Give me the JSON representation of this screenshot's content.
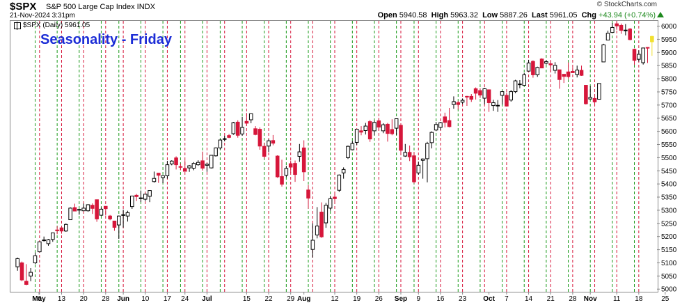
{
  "header": {
    "symbol": "$SPX",
    "description": "S&P 500 Large Cap Index  INDX",
    "datetime": "21-Nov-2024 3:31pm",
    "brand": "© StockCharts.com",
    "open_label": "Open",
    "open_value": "5940.58",
    "high_label": "High",
    "high_value": "5963.32",
    "low_label": "Low",
    "low_value": "5887.26",
    "last_label": "Last",
    "last_value": "5961.05",
    "chg_label": "Chg",
    "chg_value": "+43.94 (+0.74%)"
  },
  "legend": {
    "text": "$SPX (Daily) 5961.05"
  },
  "colors": {
    "up": "#000000",
    "down": "#d6163a",
    "current": "#f2e02e",
    "friday_line": "#1a9a1a",
    "monday_line": "#d6163a",
    "title": "#1c2dd6"
  },
  "chart_data": {
    "type": "candlestick",
    "title": "Seasonality - Friday",
    "ylim": [
      4990,
      6020
    ],
    "yticks": [
      5000,
      5050,
      5100,
      5150,
      5200,
      5250,
      5300,
      5350,
      5400,
      5450,
      5500,
      5550,
      5600,
      5650,
      5700,
      5750,
      5800,
      5850,
      5900,
      5950,
      6000
    ],
    "xticks": [
      {
        "label": "May",
        "bold": true
      },
      {
        "label": "6"
      },
      {
        "label": "13"
      },
      {
        "label": "20"
      },
      {
        "label": "28"
      },
      {
        "label": "Jun",
        "bold": true
      },
      {
        "label": "10"
      },
      {
        "label": "17"
      },
      {
        "label": "24"
      },
      {
        "label": "Jul",
        "bold": true
      },
      {
        "label": "15"
      },
      {
        "label": "22"
      },
      {
        "label": "29"
      },
      {
        "label": "Aug",
        "bold": true
      },
      {
        "label": "12"
      },
      {
        "label": "19"
      },
      {
        "label": "26"
      },
      {
        "label": "Sep",
        "bold": true
      },
      {
        "label": "9"
      },
      {
        "label": "16"
      },
      {
        "label": "23"
      },
      {
        "label": "Oct",
        "bold": true
      },
      {
        "label": "7"
      },
      {
        "label": "14"
      },
      {
        "label": "21"
      },
      {
        "label": "28"
      },
      {
        "label": "Nov",
        "bold": true
      },
      {
        "label": "11"
      },
      {
        "label": "18"
      },
      {
        "label": "25"
      }
    ],
    "friday_markers": [
      "May 3",
      "May 10",
      "May 17",
      "May 24",
      "May 31",
      "Jun 7",
      "Jun 14",
      "Jun 21",
      "Jun 28",
      "Jul 5",
      "Jul 12",
      "Jul 19",
      "Jul 26",
      "Aug 2",
      "Aug 9",
      "Aug 16",
      "Aug 23",
      "Aug 30",
      "Sep 6",
      "Sep 13",
      "Sep 20",
      "Sep 27",
      "Oct 4",
      "Oct 11",
      "Oct 18",
      "Oct 25",
      "Nov 1",
      "Nov 8",
      "Nov 15"
    ],
    "candles": [
      {
        "d": "Apr 29",
        "o": 5085,
        "h": 5120,
        "l": 5070,
        "c": 5116
      },
      {
        "d": "Apr 30",
        "o": 5100,
        "h": 5105,
        "l": 5030,
        "c": 5035
      },
      {
        "d": "May 1",
        "o": 5030,
        "h": 5095,
        "l": 5015,
        "c": 5018
      },
      {
        "d": "May 2",
        "o": 5050,
        "h": 5080,
        "l": 5030,
        "c": 5064
      },
      {
        "d": "May 3",
        "o": 5100,
        "h": 5139,
        "l": 5095,
        "c": 5127
      },
      {
        "d": "May 6",
        "o": 5142,
        "h": 5181,
        "l": 5140,
        "c": 5180
      },
      {
        "d": "May 7",
        "o": 5187,
        "h": 5200,
        "l": 5181,
        "c": 5187
      },
      {
        "d": "May 8",
        "o": 5173,
        "h": 5191,
        "l": 5165,
        "c": 5188
      },
      {
        "d": "May 9",
        "o": 5189,
        "h": 5215,
        "l": 5180,
        "c": 5214
      },
      {
        "d": "May 10",
        "o": 5225,
        "h": 5239,
        "l": 5209,
        "c": 5222
      },
      {
        "d": "May 13",
        "o": 5233,
        "h": 5237,
        "l": 5211,
        "c": 5221
      },
      {
        "d": "May 14",
        "o": 5221,
        "h": 5250,
        "l": 5218,
        "c": 5246
      },
      {
        "d": "May 15",
        "o": 5264,
        "h": 5311,
        "l": 5263,
        "c": 5308
      },
      {
        "d": "May 16",
        "o": 5310,
        "h": 5325,
        "l": 5296,
        "c": 5297
      },
      {
        "d": "May 17",
        "o": 5303,
        "h": 5305,
        "l": 5283,
        "c": 5303
      },
      {
        "d": "May 20",
        "o": 5298,
        "h": 5325,
        "l": 5298,
        "c": 5308
      },
      {
        "d": "May 21",
        "o": 5298,
        "h": 5323,
        "l": 5294,
        "c": 5321
      },
      {
        "d": "May 22",
        "o": 5319,
        "h": 5326,
        "l": 5286,
        "c": 5307
      },
      {
        "d": "May 23",
        "o": 5340,
        "h": 5341,
        "l": 5256,
        "c": 5267
      },
      {
        "d": "May 24",
        "o": 5281,
        "h": 5311,
        "l": 5279,
        "c": 5304
      },
      {
        "d": "May 28",
        "o": 5315,
        "h": 5315,
        "l": 5280,
        "c": 5306
      },
      {
        "d": "May 29",
        "o": 5278,
        "h": 5282,
        "l": 5262,
        "c": 5267
      },
      {
        "d": "May 30",
        "o": 5259,
        "h": 5260,
        "l": 5222,
        "c": 5235
      },
      {
        "d": "May 31",
        "o": 5244,
        "h": 5280,
        "l": 5191,
        "c": 5278
      },
      {
        "d": "Jun 3",
        "o": 5283,
        "h": 5302,
        "l": 5234,
        "c": 5283
      },
      {
        "d": "Jun 4",
        "o": 5278,
        "h": 5298,
        "l": 5257,
        "c": 5291
      },
      {
        "d": "Jun 5",
        "o": 5314,
        "h": 5354,
        "l": 5305,
        "c": 5354
      },
      {
        "d": "Jun 6",
        "o": 5357,
        "h": 5362,
        "l": 5335,
        "c": 5352
      },
      {
        "d": "Jun 7",
        "o": 5344,
        "h": 5375,
        "l": 5331,
        "c": 5347
      },
      {
        "d": "Jun 10",
        "o": 5342,
        "h": 5362,
        "l": 5335,
        "c": 5361
      },
      {
        "d": "Jun 11",
        "o": 5353,
        "h": 5376,
        "l": 5331,
        "c": 5375
      },
      {
        "d": "Jun 12",
        "o": 5409,
        "h": 5447,
        "l": 5405,
        "c": 5421
      },
      {
        "d": "Jun 13",
        "o": 5441,
        "h": 5441,
        "l": 5404,
        "c": 5433
      },
      {
        "d": "Jun 14",
        "o": 5424,
        "h": 5432,
        "l": 5403,
        "c": 5431
      },
      {
        "d": "Jun 17",
        "o": 5431,
        "h": 5488,
        "l": 5420,
        "c": 5473
      },
      {
        "d": "Jun 18",
        "o": 5476,
        "h": 5490,
        "l": 5471,
        "c": 5487
      },
      {
        "d": "Jun 20",
        "o": 5499,
        "h": 5505,
        "l": 5455,
        "c": 5473
      },
      {
        "d": "Jun 21",
        "o": 5466,
        "h": 5478,
        "l": 5452,
        "c": 5464
      },
      {
        "d": "Jun 24",
        "o": 5459,
        "h": 5490,
        "l": 5447,
        "c": 5448
      },
      {
        "d": "Jun 25",
        "o": 5461,
        "h": 5472,
        "l": 5446,
        "c": 5469
      },
      {
        "d": "Jun 26",
        "o": 5460,
        "h": 5483,
        "l": 5452,
        "c": 5478
      },
      {
        "d": "Jun 27",
        "o": 5473,
        "h": 5490,
        "l": 5469,
        "c": 5482
      },
      {
        "d": "Jun 28",
        "o": 5488,
        "h": 5523,
        "l": 5451,
        "c": 5460
      },
      {
        "d": "Jul 1",
        "o": 5471,
        "h": 5479,
        "l": 5446,
        "c": 5475
      },
      {
        "d": "Jul 2",
        "o": 5461,
        "h": 5510,
        "l": 5459,
        "c": 5509
      },
      {
        "d": "Jul 3",
        "o": 5507,
        "h": 5539,
        "l": 5504,
        "c": 5537
      },
      {
        "d": "Jul 5",
        "o": 5537,
        "h": 5570,
        "l": 5531,
        "c": 5567
      },
      {
        "d": "Jul 8",
        "o": 5572,
        "h": 5583,
        "l": 5562,
        "c": 5572
      },
      {
        "d": "Jul 9",
        "o": 5584,
        "h": 5590,
        "l": 5574,
        "c": 5577
      },
      {
        "d": "Jul 10",
        "o": 5591,
        "h": 5636,
        "l": 5587,
        "c": 5633
      },
      {
        "d": "Jul 11",
        "o": 5635,
        "h": 5642,
        "l": 5576,
        "c": 5585
      },
      {
        "d": "Jul 12",
        "o": 5590,
        "h": 5655,
        "l": 5583,
        "c": 5615
      },
      {
        "d": "Jul 15",
        "o": 5638,
        "h": 5670,
        "l": 5620,
        "c": 5631
      },
      {
        "d": "Jul 16",
        "o": 5644,
        "h": 5667,
        "l": 5631,
        "c": 5667
      },
      {
        "d": "Jul 17",
        "o": 5610,
        "h": 5620,
        "l": 5585,
        "c": 5588
      },
      {
        "d": "Jul 18",
        "o": 5608,
        "h": 5615,
        "l": 5530,
        "c": 5544
      },
      {
        "d": "Jul 19",
        "o": 5543,
        "h": 5557,
        "l": 5497,
        "c": 5505
      },
      {
        "d": "Jul 22",
        "o": 5544,
        "h": 5570,
        "l": 5522,
        "c": 5564
      },
      {
        "d": "Jul 23",
        "o": 5565,
        "h": 5586,
        "l": 5547,
        "c": 5555
      },
      {
        "d": "Jul 24",
        "o": 5506,
        "h": 5509,
        "l": 5423,
        "c": 5427
      },
      {
        "d": "Jul 25",
        "o": 5428,
        "h": 5492,
        "l": 5390,
        "c": 5399
      },
      {
        "d": "Jul 26",
        "o": 5433,
        "h": 5469,
        "l": 5426,
        "c": 5459
      },
      {
        "d": "Jul 29",
        "o": 5477,
        "h": 5489,
        "l": 5442,
        "c": 5464
      },
      {
        "d": "Jul 30",
        "o": 5478,
        "h": 5489,
        "l": 5408,
        "c": 5436
      },
      {
        "d": "Jul 31",
        "o": 5505,
        "h": 5552,
        "l": 5484,
        "c": 5522
      },
      {
        "d": "Aug 1",
        "o": 5537,
        "h": 5566,
        "l": 5411,
        "c": 5446
      },
      {
        "d": "Aug 2",
        "o": 5377,
        "h": 5396,
        "l": 5306,
        "c": 5346
      },
      {
        "d": "Aug 5",
        "o": 5151,
        "h": 5250,
        "l": 5120,
        "c": 5186
      },
      {
        "d": "Aug 6",
        "o": 5206,
        "h": 5312,
        "l": 5193,
        "c": 5240
      },
      {
        "d": "Aug 7",
        "o": 5293,
        "h": 5330,
        "l": 5195,
        "c": 5199
      },
      {
        "d": "Aug 8",
        "o": 5252,
        "h": 5328,
        "l": 5233,
        "c": 5319
      },
      {
        "d": "Aug 9",
        "o": 5308,
        "h": 5354,
        "l": 5298,
        "c": 5344
      },
      {
        "d": "Aug 12",
        "o": 5350,
        "h": 5371,
        "l": 5330,
        "c": 5344
      },
      {
        "d": "Aug 13",
        "o": 5376,
        "h": 5436,
        "l": 5370,
        "c": 5434
      },
      {
        "d": "Aug 14",
        "o": 5442,
        "h": 5463,
        "l": 5420,
        "c": 5455
      },
      {
        "d": "Aug 15",
        "o": 5500,
        "h": 5546,
        "l": 5495,
        "c": 5543
      },
      {
        "d": "Aug 16",
        "o": 5530,
        "h": 5564,
        "l": 5528,
        "c": 5554
      },
      {
        "d": "Aug 19",
        "o": 5558,
        "h": 5608,
        "l": 5548,
        "c": 5608
      },
      {
        "d": "Aug 20",
        "o": 5602,
        "h": 5620,
        "l": 5585,
        "c": 5597
      },
      {
        "d": "Aug 21",
        "o": 5603,
        "h": 5632,
        "l": 5588,
        "c": 5620
      },
      {
        "d": "Aug 22",
        "o": 5637,
        "h": 5643,
        "l": 5560,
        "c": 5571
      },
      {
        "d": "Aug 23",
        "o": 5602,
        "h": 5641,
        "l": 5585,
        "c": 5634
      },
      {
        "d": "Aug 26",
        "o": 5640,
        "h": 5651,
        "l": 5602,
        "c": 5616
      },
      {
        "d": "Aug 27",
        "o": 5602,
        "h": 5631,
        "l": 5593,
        "c": 5625
      },
      {
        "d": "Aug 28",
        "o": 5627,
        "h": 5632,
        "l": 5561,
        "c": 5592
      },
      {
        "d": "Aug 29",
        "o": 5607,
        "h": 5646,
        "l": 5585,
        "c": 5591
      },
      {
        "d": "Aug 30",
        "o": 5612,
        "h": 5648,
        "l": 5586,
        "c": 5648
      },
      {
        "d": "Sep 3",
        "o": 5623,
        "h": 5623,
        "l": 5520,
        "c": 5528
      },
      {
        "d": "Sep 4",
        "o": 5506,
        "h": 5552,
        "l": 5503,
        "c": 5520
      },
      {
        "d": "Sep 5",
        "o": 5520,
        "h": 5546,
        "l": 5487,
        "c": 5503
      },
      {
        "d": "Sep 6",
        "o": 5507,
        "h": 5522,
        "l": 5402,
        "c": 5408
      },
      {
        "d": "Sep 9",
        "o": 5442,
        "h": 5485,
        "l": 5435,
        "c": 5471
      },
      {
        "d": "Sep 10",
        "o": 5490,
        "h": 5497,
        "l": 5420,
        "c": 5495
      },
      {
        "d": "Sep 11",
        "o": 5496,
        "h": 5560,
        "l": 5406,
        "c": 5554
      },
      {
        "d": "Sep 12",
        "o": 5557,
        "h": 5600,
        "l": 5535,
        "c": 5596
      },
      {
        "d": "Sep 13",
        "o": 5605,
        "h": 5636,
        "l": 5601,
        "c": 5626
      },
      {
        "d": "Sep 16",
        "o": 5615,
        "h": 5636,
        "l": 5604,
        "c": 5633
      },
      {
        "d": "Sep 17",
        "o": 5655,
        "h": 5671,
        "l": 5615,
        "c": 5634
      },
      {
        "d": "Sep 18",
        "o": 5641,
        "h": 5689,
        "l": 5615,
        "c": 5618
      },
      {
        "d": "Sep 19",
        "o": 5702,
        "h": 5733,
        "l": 5686,
        "c": 5713
      },
      {
        "d": "Sep 20",
        "o": 5709,
        "h": 5716,
        "l": 5683,
        "c": 5702
      },
      {
        "d": "Sep 23",
        "o": 5711,
        "h": 5725,
        "l": 5704,
        "c": 5718
      },
      {
        "d": "Sep 24",
        "o": 5733,
        "h": 5735,
        "l": 5697,
        "c": 5732
      },
      {
        "d": "Sep 25",
        "o": 5733,
        "h": 5742,
        "l": 5712,
        "c": 5722
      },
      {
        "d": "Sep 26",
        "o": 5762,
        "h": 5767,
        "l": 5721,
        "c": 5745
      },
      {
        "d": "Sep 27",
        "o": 5755,
        "h": 5764,
        "l": 5727,
        "c": 5738
      },
      {
        "d": "Sep 30",
        "o": 5726,
        "h": 5765,
        "l": 5703,
        "c": 5762
      },
      {
        "d": "Oct 1",
        "o": 5758,
        "h": 5758,
        "l": 5674,
        "c": 5709
      },
      {
        "d": "Oct 2",
        "o": 5698,
        "h": 5720,
        "l": 5678,
        "c": 5709
      },
      {
        "d": "Oct 3",
        "o": 5698,
        "h": 5719,
        "l": 5674,
        "c": 5699
      },
      {
        "d": "Oct 4",
        "o": 5737,
        "h": 5753,
        "l": 5702,
        "c": 5751
      },
      {
        "d": "Oct 7",
        "o": 5737,
        "h": 5748,
        "l": 5694,
        "c": 5696
      },
      {
        "d": "Oct 8",
        "o": 5719,
        "h": 5757,
        "l": 5713,
        "c": 5751
      },
      {
        "d": "Oct 9",
        "o": 5751,
        "h": 5796,
        "l": 5745,
        "c": 5792
      },
      {
        "d": "Oct 10",
        "o": 5778,
        "h": 5795,
        "l": 5764,
        "c": 5780
      },
      {
        "d": "Oct 11",
        "o": 5775,
        "h": 5822,
        "l": 5775,
        "c": 5815
      },
      {
        "d": "Oct 14",
        "o": 5829,
        "h": 5872,
        "l": 5829,
        "c": 5860
      },
      {
        "d": "Oct 15",
        "o": 5866,
        "h": 5870,
        "l": 5804,
        "c": 5815
      },
      {
        "d": "Oct 16",
        "o": 5815,
        "h": 5846,
        "l": 5807,
        "c": 5843
      },
      {
        "d": "Oct 17",
        "o": 5875,
        "h": 5878,
        "l": 5840,
        "c": 5841
      },
      {
        "d": "Oct 18",
        "o": 5859,
        "h": 5871,
        "l": 5854,
        "c": 5865
      },
      {
        "d": "Oct 21",
        "o": 5857,
        "h": 5866,
        "l": 5824,
        "c": 5853
      },
      {
        "d": "Oct 22",
        "o": 5832,
        "h": 5863,
        "l": 5820,
        "c": 5851
      },
      {
        "d": "Oct 23",
        "o": 5834,
        "h": 5834,
        "l": 5762,
        "c": 5797
      },
      {
        "d": "Oct 24",
        "o": 5817,
        "h": 5817,
        "l": 5784,
        "c": 5809
      },
      {
        "d": "Oct 25",
        "o": 5826,
        "h": 5862,
        "l": 5799,
        "c": 5808
      },
      {
        "d": "Oct 28",
        "o": 5828,
        "h": 5842,
        "l": 5823,
        "c": 5823
      },
      {
        "d": "Oct 29",
        "o": 5816,
        "h": 5850,
        "l": 5805,
        "c": 5833
      },
      {
        "d": "Oct 30",
        "o": 5832,
        "h": 5850,
        "l": 5811,
        "c": 5813
      },
      {
        "d": "Oct 31",
        "o": 5775,
        "h": 5775,
        "l": 5702,
        "c": 5705
      },
      {
        "d": "Nov 1",
        "o": 5723,
        "h": 5772,
        "l": 5723,
        "c": 5729
      },
      {
        "d": "Nov 4",
        "o": 5725,
        "h": 5741,
        "l": 5696,
        "c": 5712
      },
      {
        "d": "Nov 5",
        "o": 5722,
        "h": 5783,
        "l": 5722,
        "c": 5782
      },
      {
        "d": "Nov 6",
        "o": 5864,
        "h": 5933,
        "l": 5864,
        "c": 5929
      },
      {
        "d": "Nov 7",
        "o": 5947,
        "h": 5983,
        "l": 5946,
        "c": 5973
      },
      {
        "d": "Nov 8",
        "o": 5976,
        "h": 6012,
        "l": 5976,
        "c": 5995
      },
      {
        "d": "Nov 11",
        "o": 6009,
        "h": 6018,
        "l": 5986,
        "c": 6001
      },
      {
        "d": "Nov 12",
        "o": 6003,
        "h": 6010,
        "l": 5971,
        "c": 5984
      },
      {
        "d": "Nov 13",
        "o": 5985,
        "h": 6008,
        "l": 5965,
        "c": 5985
      },
      {
        "d": "Nov 14",
        "o": 5989,
        "h": 5993,
        "l": 5946,
        "c": 5949
      },
      {
        "d": "Nov 15",
        "o": 5912,
        "h": 5915,
        "l": 5853,
        "c": 5870
      },
      {
        "d": "Nov 18",
        "o": 5874,
        "h": 5908,
        "l": 5865,
        "c": 5893
      },
      {
        "d": "Nov 19",
        "o": 5861,
        "h": 5917,
        "l": 5854,
        "c": 5917
      },
      {
        "d": "Nov 20",
        "o": 5919,
        "h": 5920,
        "l": 5860,
        "c": 5917
      },
      {
        "d": "Nov 21",
        "o": 5940.58,
        "h": 5963.32,
        "l": 5887.26,
        "c": 5961.05
      }
    ]
  }
}
